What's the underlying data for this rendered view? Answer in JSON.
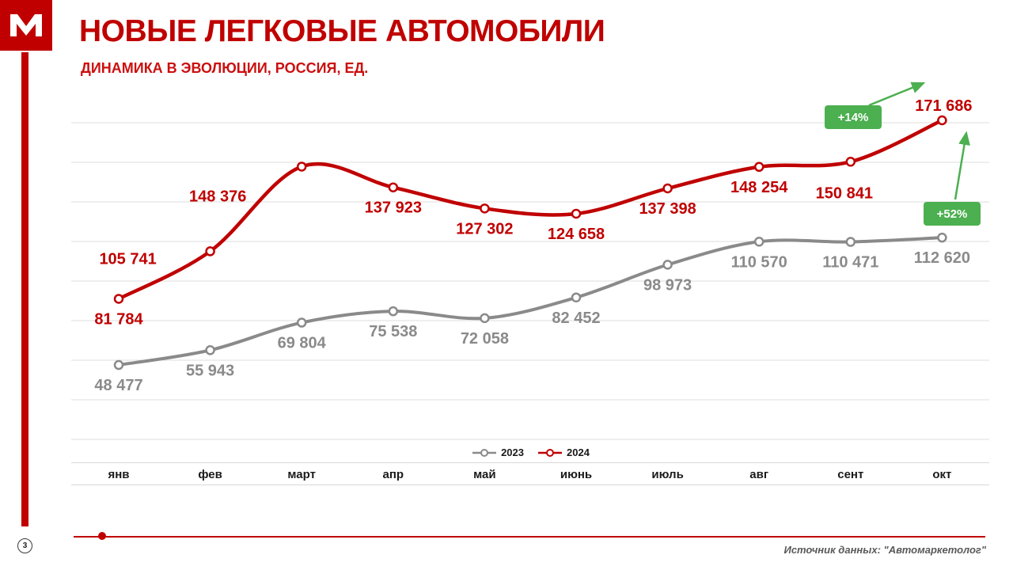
{
  "header": {
    "title": "НОВЫЕ ЛЕГКОВЫЕ АВТОМОБИЛИ",
    "subtitle": "ДИНАМИКА В ЭВОЛЮЦИИ, РОССИЯ, ЕД."
  },
  "footer": {
    "page_number": "3",
    "source_note": "Источник данных: \"Автомаркетолог\""
  },
  "colors": {
    "brand_red": "#c00000",
    "series_2023": "#8a8a8a",
    "series_2024": "#c00000",
    "badge_green": "#4caf50",
    "gridline": "#dcdcdc"
  },
  "chart_data": {
    "type": "line",
    "title": "НОВЫЕ ЛЕГКОВЫЕ АВТОМОБИЛИ",
    "subtitle": "ДИНАМИКА В ЭВОЛЮЦИИ, РОССИЯ, ЕД.",
    "categories": [
      "янв",
      "фев",
      "март",
      "апр",
      "май",
      "июнь",
      "июль",
      "авг",
      "сент",
      "окт"
    ],
    "series": [
      {
        "name": "2023",
        "color": "#8a8a8a",
        "values": [
          48477,
          55943,
          69804,
          75538,
          72058,
          82452,
          98973,
          110570,
          110471,
          112620
        ]
      },
      {
        "name": "2024",
        "color": "#c00000",
        "values": [
          81784,
          105741,
          148376,
          137923,
          127302,
          124658,
          137398,
          148254,
          150841,
          171686
        ]
      }
    ],
    "annotations": [
      {
        "text": "+14%",
        "color": "#4caf50"
      },
      {
        "text": "+52%",
        "color": "#4caf50"
      }
    ],
    "xlabel": "",
    "ylabel": "",
    "ylim": [
      0,
      190000
    ],
    "grid": true,
    "legend_position": "bottom"
  }
}
